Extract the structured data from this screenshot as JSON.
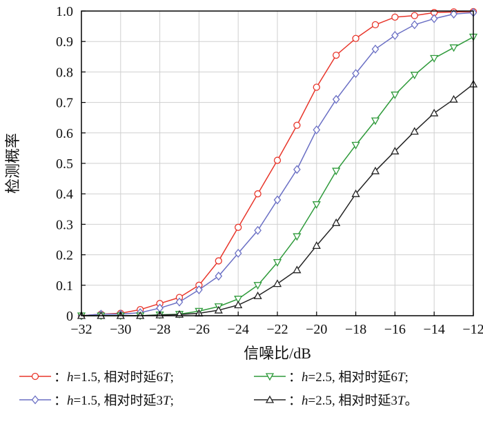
{
  "chart_data": {
    "type": "line",
    "xlabel": "信噪比/dB",
    "ylabel": "检测概率",
    "xlim": [
      -32,
      -12
    ],
    "ylim": [
      0,
      1.0
    ],
    "xticks": [
      -32,
      -30,
      -28,
      -26,
      -24,
      -22,
      -20,
      -18,
      -16,
      -14,
      -12
    ],
    "xtick_labels": [
      "−32",
      "−30",
      "−28",
      "−26",
      "−24",
      "−22",
      "−20",
      "−18",
      "−16",
      "−14",
      "−12"
    ],
    "yticks": [
      0,
      0.1,
      0.2,
      0.3,
      0.4,
      0.5,
      0.6,
      0.7,
      0.8,
      0.9,
      1.0
    ],
    "ytick_labels": [
      "0",
      "0.1",
      "0.2",
      "0.3",
      "0.4",
      "0.5",
      "0.6",
      "0.7",
      "0.8",
      "0.9",
      "1.0"
    ],
    "grid": true,
    "legend_position": "bottom",
    "x": [
      -32,
      -31,
      -30,
      -29,
      -28,
      -27,
      -26,
      -25,
      -24,
      -23,
      -22,
      -21,
      -20,
      -19,
      -18,
      -17,
      -16,
      -15,
      -14,
      -13,
      -12
    ],
    "series": [
      {
        "name": "：h=1.5, 相对时延6T;",
        "legend_prefix": "：",
        "legend_var": "h",
        "legend_rest": "=1.5, 相对时延6",
        "legend_T": "T",
        "legend_end": ";",
        "color": "#e8352a",
        "marker": "circle",
        "values": [
          0.0,
          0.005,
          0.008,
          0.02,
          0.04,
          0.06,
          0.1,
          0.18,
          0.29,
          0.4,
          0.51,
          0.625,
          0.75,
          0.855,
          0.91,
          0.955,
          0.98,
          0.985,
          0.995,
          0.997,
          0.998
        ]
      },
      {
        "name": "：h=1.5, 相对时延3T;",
        "legend_prefix": "：",
        "legend_var": "h",
        "legend_rest": "=1.5, 相对时延3",
        "legend_T": "T",
        "legend_end": ";",
        "color": "#6a6fc4",
        "marker": "diamond",
        "values": [
          0.0,
          0.005,
          0.005,
          0.01,
          0.025,
          0.045,
          0.085,
          0.13,
          0.205,
          0.28,
          0.38,
          0.48,
          0.61,
          0.71,
          0.795,
          0.875,
          0.92,
          0.955,
          0.975,
          0.99,
          0.995
        ]
      },
      {
        "name": "：h=2.5, 相对时延6T;",
        "legend_prefix": "：",
        "legend_var": "h",
        "legend_rest": "=2.5, 相对时延6",
        "legend_T": "T",
        "legend_end": ";",
        "color": "#2e9a3a",
        "marker": "triangle-down",
        "values": [
          0.0,
          0.0,
          0.0,
          0.0,
          0.003,
          0.005,
          0.015,
          0.03,
          0.055,
          0.1,
          0.175,
          0.26,
          0.365,
          0.475,
          0.56,
          0.64,
          0.725,
          0.79,
          0.845,
          0.88,
          0.915
        ]
      },
      {
        "name": "：h=2.5, 相对时延3T。",
        "legend_prefix": "：",
        "legend_var": "h",
        "legend_rest": "=2.5, 相对时延3",
        "legend_T": "T",
        "legend_end": "。",
        "color": "#222222",
        "marker": "triangle-up",
        "values": [
          0.0,
          0.0,
          0.0,
          0.0,
          0.002,
          0.004,
          0.008,
          0.018,
          0.035,
          0.065,
          0.105,
          0.15,
          0.23,
          0.305,
          0.4,
          0.475,
          0.54,
          0.605,
          0.665,
          0.71,
          0.76
        ]
      }
    ]
  }
}
